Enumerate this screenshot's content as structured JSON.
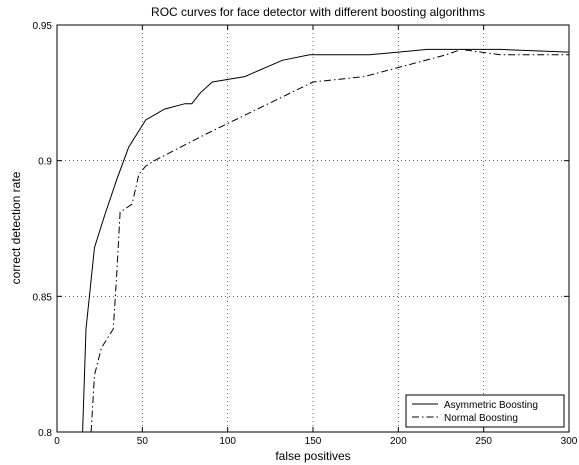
{
  "chart_data": {
    "type": "line",
    "title": "ROC curves for face detector with different boosting algorithms",
    "xlabel": "false positives",
    "ylabel": "correct detection rate",
    "xlim": [
      0,
      300
    ],
    "ylim": [
      0.8,
      0.95
    ],
    "xticks": [
      0,
      50,
      100,
      150,
      200,
      250,
      300
    ],
    "yticks": [
      0.8,
      0.85,
      0.9,
      0.95
    ],
    "xtick_labels": [
      "0",
      "50",
      "100",
      "150",
      "200",
      "250",
      "300"
    ],
    "ytick_labels": [
      "0.8",
      "0.85",
      "0.9",
      "0.95"
    ],
    "grid": true,
    "legend_position": "bottom-right",
    "series": [
      {
        "name": "Asymmetric Boosting",
        "line_style": "solid",
        "color": "#000000",
        "x": [
          15,
          17,
          22,
          28,
          35,
          42,
          52,
          63,
          75,
          79,
          84,
          91,
          110,
          132,
          148,
          183,
          217,
          260,
          300
        ],
        "y": [
          0.8,
          0.838,
          0.868,
          0.88,
          0.893,
          0.905,
          0.915,
          0.919,
          0.921,
          0.921,
          0.925,
          0.929,
          0.931,
          0.937,
          0.939,
          0.939,
          0.941,
          0.941,
          0.94
        ]
      },
      {
        "name": "Normal Boosting",
        "line_style": "dashdot",
        "color": "#000000",
        "x": [
          20,
          22,
          26,
          33,
          35,
          37,
          44,
          48,
          52,
          57,
          88,
          150,
          180,
          228,
          237,
          260,
          300
        ],
        "y": [
          0.8,
          0.821,
          0.831,
          0.838,
          0.858,
          0.881,
          0.884,
          0.895,
          0.898,
          0.9,
          0.91,
          0.929,
          0.931,
          0.939,
          0.941,
          0.939,
          0.939
        ]
      }
    ]
  }
}
